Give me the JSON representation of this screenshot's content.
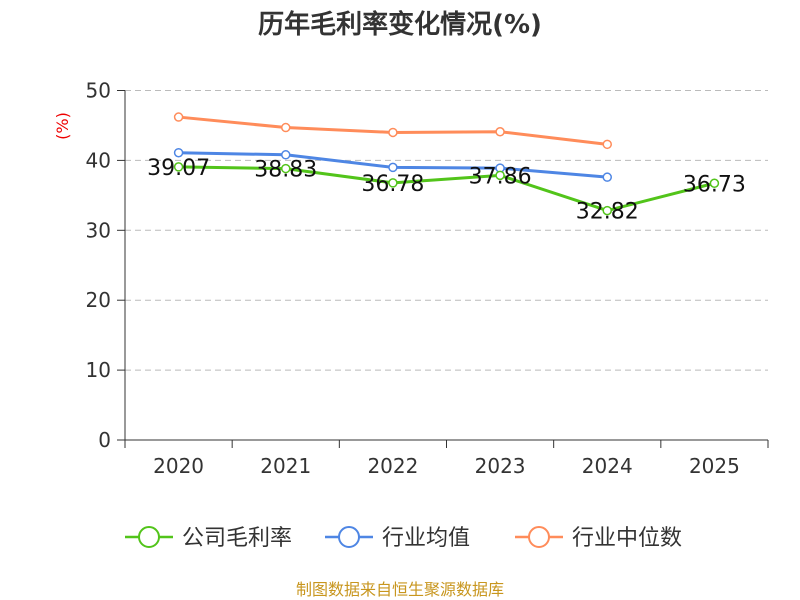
{
  "chart_data": {
    "type": "line",
    "title": "历年毛利率变化情况(%)",
    "ylabel": "(%)",
    "categories": [
      "2020",
      "2021",
      "2022",
      "2023",
      "2024",
      "2025"
    ],
    "ylim": [
      0,
      50
    ],
    "yticks": [
      0,
      10,
      20,
      30,
      40,
      50
    ],
    "grid": true,
    "legend_position": "bottom",
    "series": [
      {
        "name": "公司毛利率",
        "color": "#52c41a",
        "values": [
          39.07,
          38.83,
          36.78,
          37.86,
          32.82,
          36.73
        ],
        "labels": [
          "39.07",
          "38.83",
          "36.78",
          "37.86",
          "32.82",
          "36.73"
        ]
      },
      {
        "name": "行业均值",
        "color": "#4e86e4",
        "values": [
          41.1,
          40.8,
          39.0,
          38.9,
          37.6,
          null
        ]
      },
      {
        "name": "行业中位数",
        "color": "#ff8c5a",
        "values": [
          46.2,
          44.7,
          44.0,
          44.1,
          42.3,
          null
        ]
      }
    ],
    "source": "制图数据来自恒生聚源数据库"
  }
}
